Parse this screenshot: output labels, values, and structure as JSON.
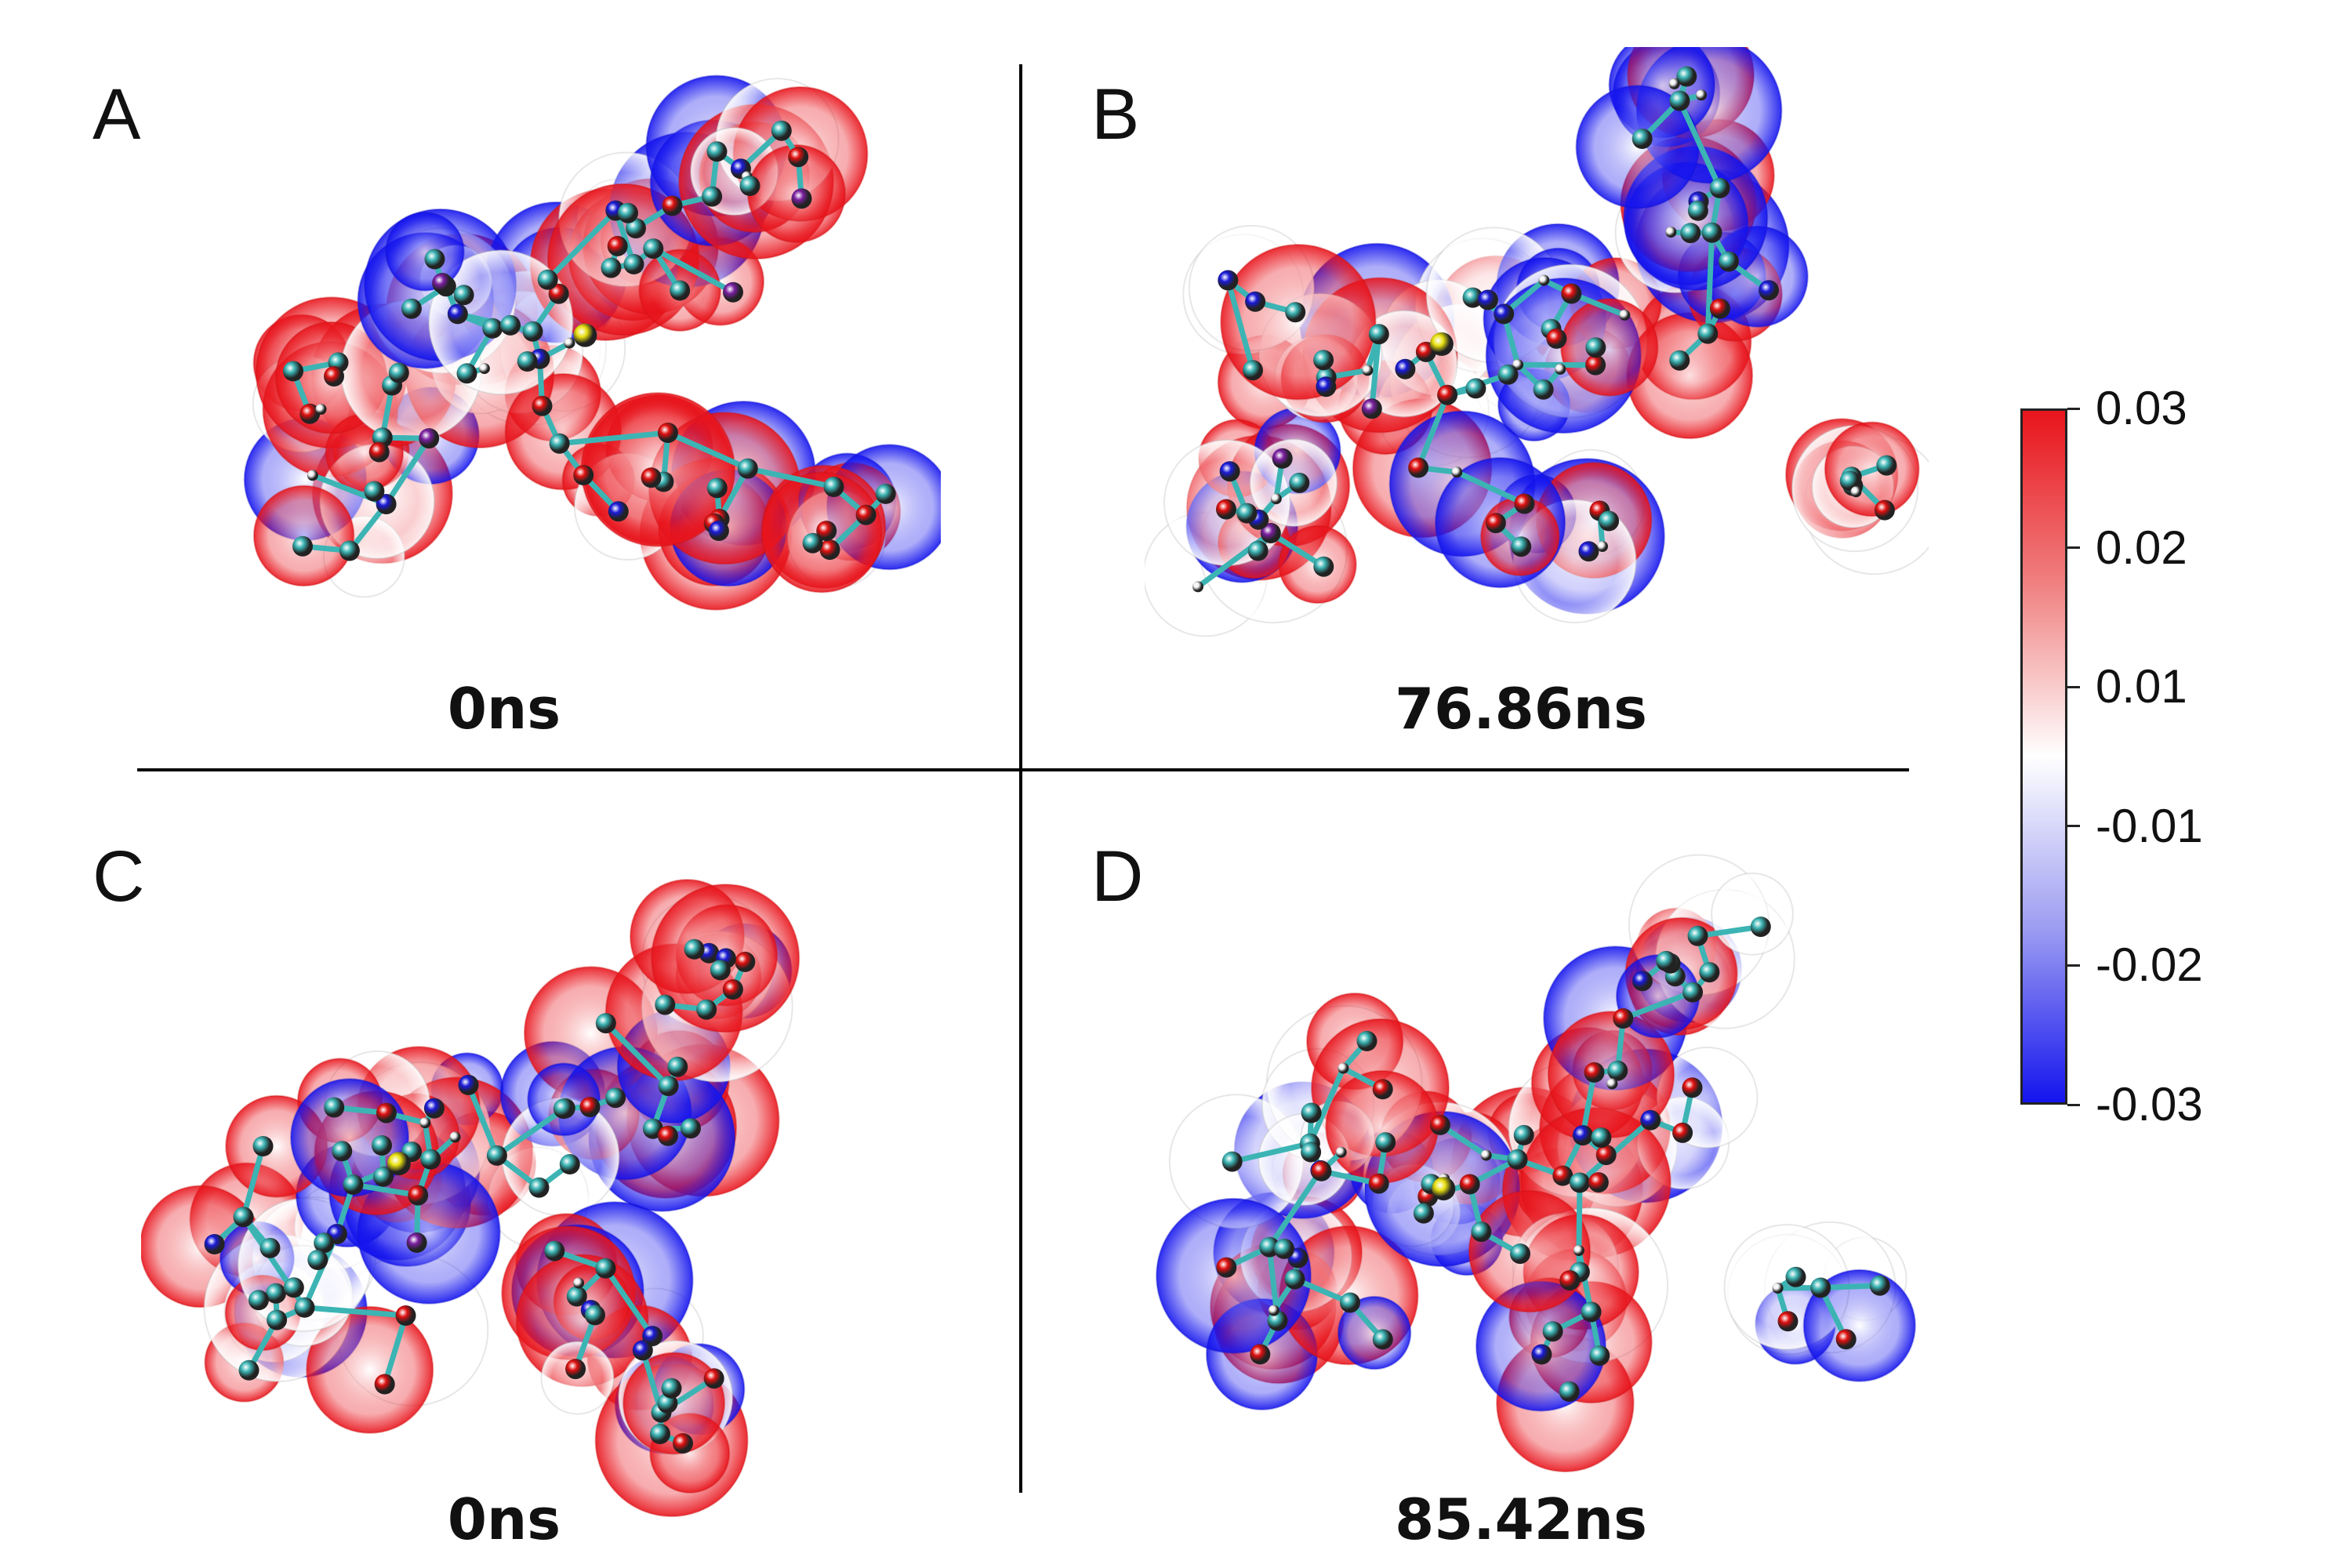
{
  "panels": [
    {
      "letter": "A",
      "time": "0ns"
    },
    {
      "letter": "B",
      "time": "76.86ns"
    },
    {
      "letter": "C",
      "time": "0ns"
    },
    {
      "letter": "D",
      "time": "85.42ns"
    }
  ],
  "colorbar": {
    "ticks": [
      "0.03",
      "0.02",
      "0.01",
      "-0.01",
      "-0.02",
      "-0.03"
    ],
    "colors": {
      "max": "#e8141c",
      "mid": "#ffffff",
      "min": "#1414ee"
    }
  },
  "molecule_colors": {
    "carbon": "#3cb4b4",
    "oxygen": "#e01010",
    "nitrogen": "#1a1ad8",
    "sulfur": "#e8e010",
    "hydrogen": "#f0f0f0",
    "phosphorus": "#7a1fa0"
  }
}
